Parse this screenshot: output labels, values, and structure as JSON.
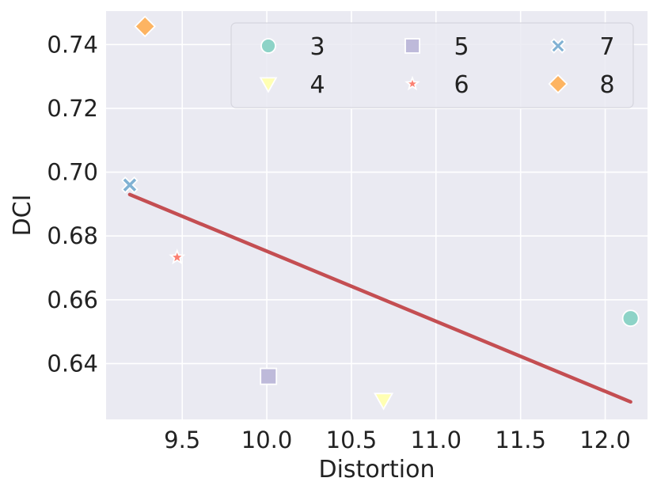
{
  "chart_data": {
    "type": "scatter",
    "xlabel": "Distortion",
    "ylabel": "DCI",
    "xlim": [
      9.05,
      12.25
    ],
    "ylim": [
      0.6225,
      0.7505
    ],
    "x_ticks": [
      9.5,
      10.0,
      10.5,
      11.0,
      11.5,
      12.0
    ],
    "x_tick_labels": [
      "9.5",
      "10.0",
      "10.5",
      "11.0",
      "11.5",
      "12.0"
    ],
    "y_ticks": [
      0.64,
      0.66,
      0.68,
      0.7,
      0.72,
      0.74
    ],
    "y_tick_labels": [
      "0.64",
      "0.66",
      "0.68",
      "0.70",
      "0.72",
      "0.74"
    ],
    "grid": true,
    "legend_position": "top-right",
    "series": [
      {
        "name": "3",
        "marker": "circle",
        "color": "#8dd3c7",
        "x": 12.15,
        "y": 0.6542
      },
      {
        "name": "4",
        "marker": "triangle-down",
        "color": "#ffffb3",
        "x": 10.69,
        "y": 0.6285
      },
      {
        "name": "5",
        "marker": "square",
        "color": "#bebada",
        "x": 10.01,
        "y": 0.636
      },
      {
        "name": "6",
        "marker": "star",
        "color": "#fb8072",
        "x": 9.47,
        "y": 0.6733
      },
      {
        "name": "7",
        "marker": "x",
        "color": "#80b1d3",
        "x": 9.19,
        "y": 0.696
      },
      {
        "name": "8",
        "marker": "diamond",
        "color": "#fdb462",
        "x": 9.28,
        "y": 0.7457
      }
    ],
    "trend_line": {
      "color": "#c44e52",
      "x": [
        9.19,
        12.15
      ],
      "y": [
        0.693,
        0.628
      ]
    },
    "colors": {
      "plot_background": "#eaeaf2",
      "grid": "#ffffff",
      "text": "#222222"
    }
  }
}
